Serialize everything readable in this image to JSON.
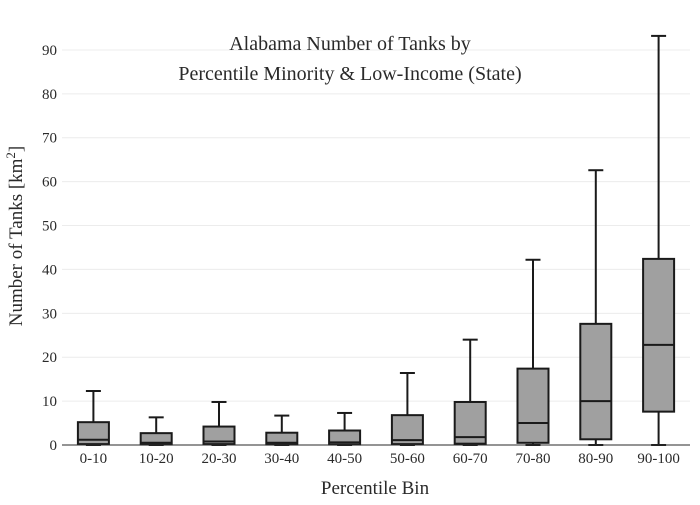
{
  "chart_data": {
    "type": "box",
    "title": "Alabama Number of Tanks by",
    "subtitle": "Percentile Minority & Low-Income (State)",
    "xlabel": "Percentile Bin",
    "ylabel_main": "Number of Tanks  [km",
    "ylabel_sup": "2",
    "ylabel_close": "]",
    "ylim": [
      0,
      95
    ],
    "y_ticks": [
      0,
      10,
      20,
      30,
      40,
      50,
      60,
      70,
      80,
      90
    ],
    "grid": true,
    "legend": "none",
    "categories": [
      "0-10",
      "10-20",
      "20-30",
      "30-40",
      "40-50",
      "50-60",
      "60-70",
      "70-80",
      "80-90",
      "90-100"
    ],
    "boxes": [
      {
        "min": 0,
        "q1": 0.2,
        "median": 1.2,
        "q3": 5.2,
        "max": 12.3
      },
      {
        "min": 0,
        "q1": 0.1,
        "median": 0.5,
        "q3": 2.7,
        "max": 6.3
      },
      {
        "min": 0,
        "q1": 0.2,
        "median": 0.8,
        "q3": 4.2,
        "max": 9.8
      },
      {
        "min": 0,
        "q1": 0.1,
        "median": 0.5,
        "q3": 2.8,
        "max": 6.7
      },
      {
        "min": 0,
        "q1": 0.1,
        "median": 0.6,
        "q3": 3.3,
        "max": 7.3
      },
      {
        "min": 0,
        "q1": 0.2,
        "median": 1.1,
        "q3": 6.8,
        "max": 16.4
      },
      {
        "min": 0,
        "q1": 0.3,
        "median": 1.8,
        "q3": 9.8,
        "max": 24.0
      },
      {
        "min": 0,
        "q1": 0.5,
        "median": 5.0,
        "q3": 17.4,
        "max": 42.2
      },
      {
        "min": 0,
        "q1": 1.3,
        "median": 10.0,
        "q3": 27.6,
        "max": 62.6
      },
      {
        "min": 0,
        "q1": 7.6,
        "median": 22.8,
        "q3": 42.4,
        "max": 93.2
      }
    ]
  },
  "colors": {
    "box_fill": "#a0a0a0",
    "box_stroke": "#1a1a1a",
    "grid": "#ececec",
    "axis": "#2a2a2a"
  }
}
